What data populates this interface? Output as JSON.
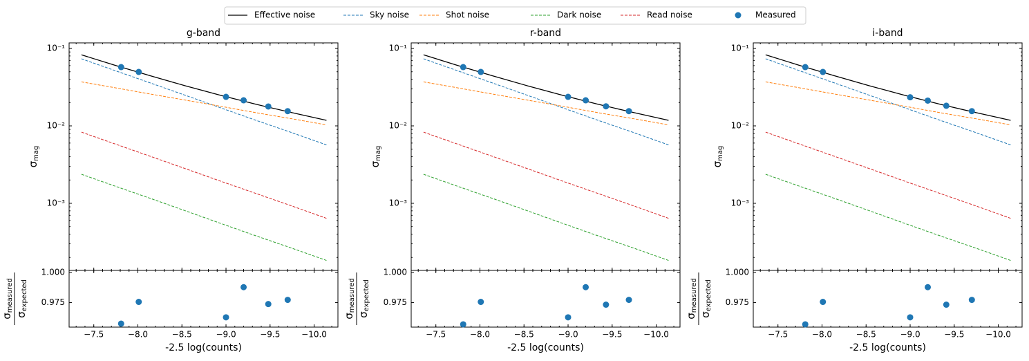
{
  "chart_data": [
    {
      "type": "line",
      "title": "g-band",
      "xlabel": "-2.5 log(counts)",
      "ylabel": {
        "symbol": "σ",
        "sub": "mag"
      },
      "logy": true,
      "xlim": [
        -7.22,
        -10.27
      ],
      "ylim": [
        0.000136,
        0.118
      ],
      "xticks": [
        {
          "value": -7.5,
          "label": "−7.5"
        },
        {
          "value": -8.0,
          "label": "−8.0"
        },
        {
          "value": -8.5,
          "label": "−8.5"
        },
        {
          "value": -9.0,
          "label": "−9.0"
        },
        {
          "value": -9.5,
          "label": "−9.5"
        },
        {
          "value": -10.0,
          "label": "−10.0"
        }
      ],
      "yticks": [
        {
          "value": 0.1,
          "label": "10⁻¹"
        },
        {
          "value": 0.01,
          "label": "10⁻²"
        },
        {
          "value": 0.001,
          "label": "10⁻³"
        }
      ],
      "x": [
        -7.36,
        -7.74,
        -8.14,
        -8.54,
        -8.94,
        -9.34,
        -9.74,
        -10.14
      ],
      "series": [
        {
          "name": "Effective noise",
          "color": "#000000",
          "style": "solid",
          "values": [
            0.0827,
            0.0607,
            0.0444,
            0.0329,
            0.0248,
            0.019,
            0.0149,
            0.0118
          ]
        },
        {
          "name": "Sky noise",
          "color": "#1f77b4",
          "style": "dashed",
          "values": [
            0.0735,
            0.0518,
            0.0359,
            0.0248,
            0.0171,
            0.0118,
            0.00823,
            0.00568
          ]
        },
        {
          "name": "Shot noise",
          "color": "#ff7f0e",
          "style": "dashed",
          "values": [
            0.037,
            0.0311,
            0.0258,
            0.0215,
            0.0179,
            0.0148,
            0.0124,
            0.0103
          ]
        },
        {
          "name": "Dark noise",
          "color": "#2ca02c",
          "style": "dashed",
          "values": [
            0.00237,
            0.00167,
            0.00116,
            0.0008,
            0.00055,
            0.00038,
            0.000265,
            0.000183
          ]
        },
        {
          "name": "Read noise",
          "color": "#d62728",
          "style": "dashed",
          "values": [
            0.0083,
            0.00585,
            0.00405,
            0.0028,
            0.00193,
            0.00134,
            0.00093,
            0.00064
          ]
        }
      ],
      "measured": {
        "name": "Measured",
        "color": "#1f77b4",
        "x": [
          -7.81,
          -8.01,
          -9.0,
          -9.2,
          -9.48,
          -9.7
        ],
        "values": [
          0.0574,
          0.0497,
          0.0237,
          0.0214,
          0.0178,
          0.0155
        ]
      },
      "ratio": {
        "ylabel": {
          "num": "σ",
          "numsub": "measured",
          "den": "σ",
          "densub": "expected"
        },
        "ylim": [
          0.9547,
          1.0017
        ],
        "yticks": [
          {
            "value": 1.0,
            "label": "1.000"
          },
          0.975
        ],
        "values": [
          0.9576,
          0.9756,
          0.9628,
          0.9878,
          0.9738,
          0.9773
        ]
      }
    },
    {
      "type": "line",
      "title": "r-band",
      "xlabel": "-2.5 log(counts)",
      "ylabel": {
        "symbol": "σ",
        "sub": "mag"
      },
      "logy": true,
      "xlim": [
        -7.22,
        -10.27
      ],
      "ylim": [
        0.000136,
        0.118
      ],
      "xticks": [
        {
          "value": -7.5,
          "label": "−7.5"
        },
        {
          "value": -8.0,
          "label": "−8.0"
        },
        {
          "value": -8.5,
          "label": "−8.5"
        },
        {
          "value": -9.0,
          "label": "−9.0"
        },
        {
          "value": -9.5,
          "label": "−9.5"
        },
        {
          "value": -10.0,
          "label": "−10.0"
        }
      ],
      "yticks": [
        {
          "value": 0.1,
          "label": "10⁻¹"
        },
        {
          "value": 0.01,
          "label": "10⁻²"
        },
        {
          "value": 0.001,
          "label": "10⁻³"
        }
      ],
      "x": [
        -7.36,
        -7.74,
        -8.14,
        -8.54,
        -8.94,
        -9.34,
        -9.74,
        -10.14
      ],
      "series": [
        {
          "color": "#000000",
          "style": "solid",
          "values": [
            0.0827,
            0.0607,
            0.0444,
            0.0329,
            0.0248,
            0.019,
            0.0149,
            0.0118
          ]
        },
        {
          "color": "#1f77b4",
          "style": "dashed",
          "values": [
            0.0735,
            0.0518,
            0.0359,
            0.0248,
            0.0171,
            0.0118,
            0.00823,
            0.00568
          ]
        },
        {
          "color": "#ff7f0e",
          "style": "dashed",
          "values": [
            0.037,
            0.0311,
            0.0258,
            0.0215,
            0.0179,
            0.0148,
            0.0124,
            0.0103
          ]
        },
        {
          "color": "#2ca02c",
          "style": "dashed",
          "values": [
            0.00237,
            0.00167,
            0.00116,
            0.0008,
            0.00055,
            0.00038,
            0.000265,
            0.000183
          ]
        },
        {
          "color": "#d62728",
          "style": "dashed",
          "values": [
            0.0083,
            0.00585,
            0.00405,
            0.0028,
            0.00193,
            0.00134,
            0.00093,
            0.00064
          ]
        }
      ],
      "measured": {
        "color": "#1f77b4",
        "x": [
          -7.81,
          -8.01,
          -9.0,
          -9.2,
          -9.43,
          -9.69
        ],
        "values": [
          0.0574,
          0.0497,
          0.0237,
          0.0214,
          0.0179,
          0.0155
        ]
      },
      "ratio": {
        "ylabel": {
          "num": "σ",
          "numsub": "measured",
          "den": "σ",
          "densub": "expected"
        },
        "ylim": [
          0.9547,
          1.0017
        ],
        "yticks": [
          {
            "value": 1.0,
            "label": "1.000"
          },
          0.975
        ],
        "values": [
          0.957,
          0.9756,
          0.9628,
          0.9878,
          0.9733,
          0.9773
        ]
      }
    },
    {
      "type": "line",
      "title": "i-band",
      "xlabel": "-2.5 log(counts)",
      "ylabel": {
        "symbol": "σ",
        "sub": "mag"
      },
      "logy": true,
      "xlim": [
        -7.22,
        -10.27
      ],
      "ylim": [
        0.000136,
        0.118
      ],
      "xticks": [
        {
          "value": -7.5,
          "label": "−7.5"
        },
        {
          "value": -8.0,
          "label": "−8.0"
        },
        {
          "value": -8.5,
          "label": "−8.5"
        },
        {
          "value": -9.0,
          "label": "−9.0"
        },
        {
          "value": -9.5,
          "label": "−9.5"
        },
        {
          "value": -10.0,
          "label": "−10.0"
        }
      ],
      "yticks": [
        {
          "value": 0.1,
          "label": "10⁻¹"
        },
        {
          "value": 0.01,
          "label": "10⁻²"
        },
        {
          "value": 0.001,
          "label": "10⁻³"
        }
      ],
      "x": [
        -7.36,
        -7.74,
        -8.14,
        -8.54,
        -8.94,
        -9.34,
        -9.74,
        -10.14
      ],
      "series": [
        {
          "color": "#000000",
          "style": "solid",
          "values": [
            0.0827,
            0.0607,
            0.0444,
            0.0329,
            0.0248,
            0.019,
            0.0149,
            0.0118
          ]
        },
        {
          "color": "#1f77b4",
          "style": "dashed",
          "values": [
            0.0735,
            0.0518,
            0.0359,
            0.0248,
            0.0171,
            0.0118,
            0.00823,
            0.00568
          ]
        },
        {
          "color": "#ff7f0e",
          "style": "dashed",
          "values": [
            0.037,
            0.0311,
            0.0258,
            0.0215,
            0.0179,
            0.0148,
            0.0124,
            0.0103
          ]
        },
        {
          "color": "#2ca02c",
          "style": "dashed",
          "values": [
            0.00237,
            0.00167,
            0.00116,
            0.0008,
            0.00055,
            0.00038,
            0.000265,
            0.000183
          ]
        },
        {
          "color": "#d62728",
          "style": "dashed",
          "values": [
            0.0083,
            0.00585,
            0.00405,
            0.0028,
            0.00193,
            0.00134,
            0.00093,
            0.00064
          ]
        }
      ],
      "measured": {
        "color": "#1f77b4",
        "x": [
          -7.81,
          -8.01,
          -9.0,
          -9.2,
          -9.41,
          -9.7
        ],
        "values": [
          0.0574,
          0.0497,
          0.0234,
          0.0212,
          0.0182,
          0.0155
        ]
      },
      "ratio": {
        "ylabel": {
          "num": "σ",
          "numsub": "measured",
          "den": "σ",
          "densub": "expected"
        },
        "ylim": [
          0.9547,
          1.0017
        ],
        "yticks": [
          {
            "value": 1.0,
            "label": "1.000"
          },
          0.975
        ],
        "values": [
          0.957,
          0.9756,
          0.9628,
          0.9878,
          0.9733,
          0.9773
        ]
      }
    }
  ]
}
